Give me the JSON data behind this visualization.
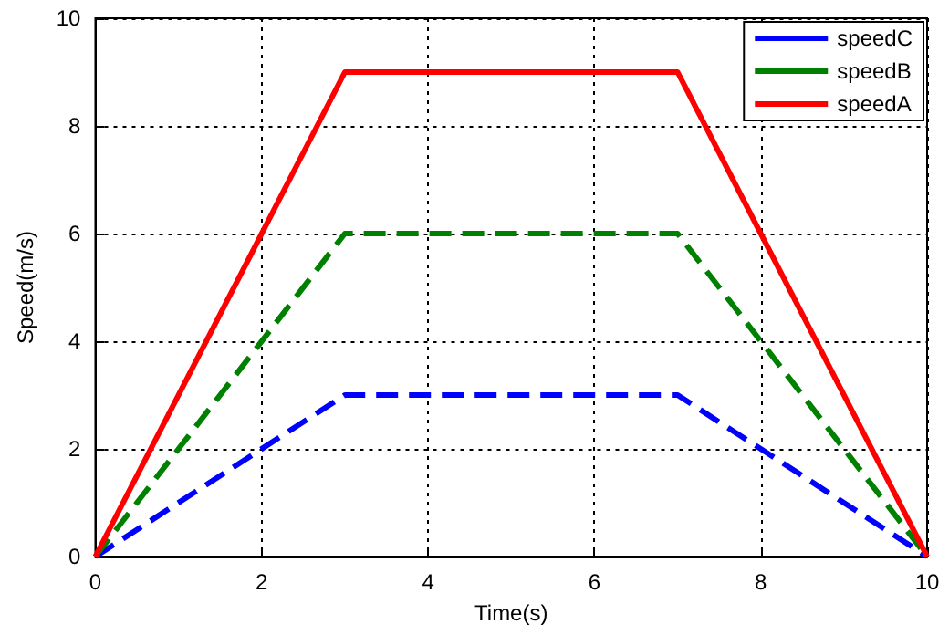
{
  "chart_data": {
    "type": "line",
    "xlabel": "Time(s)",
    "ylabel": "Speed(m/s)",
    "xlim": [
      0,
      10
    ],
    "xticks": [
      0,
      2,
      4,
      6,
      8,
      10
    ],
    "ylim": [
      0,
      10
    ],
    "yticks": [
      0,
      2,
      4,
      6,
      8,
      10
    ],
    "grid": true,
    "legend": "top right",
    "marker": "none",
    "series": [
      {
        "name": "speedC",
        "color": "#0000ff",
        "line_style": "dashed",
        "x": [
          0,
          3,
          7,
          10
        ],
        "values": [
          0,
          3,
          3,
          0
        ]
      },
      {
        "name": "speedB",
        "color": "#008000",
        "line_style": "dashed",
        "x": [
          0,
          3,
          7,
          10
        ],
        "values": [
          0,
          6,
          6,
          0
        ]
      },
      {
        "name": "speedA",
        "color": "#ff0000",
        "line_style": "solid",
        "x": [
          0,
          3,
          7,
          10
        ],
        "values": [
          0,
          9,
          9,
          0
        ]
      }
    ]
  }
}
